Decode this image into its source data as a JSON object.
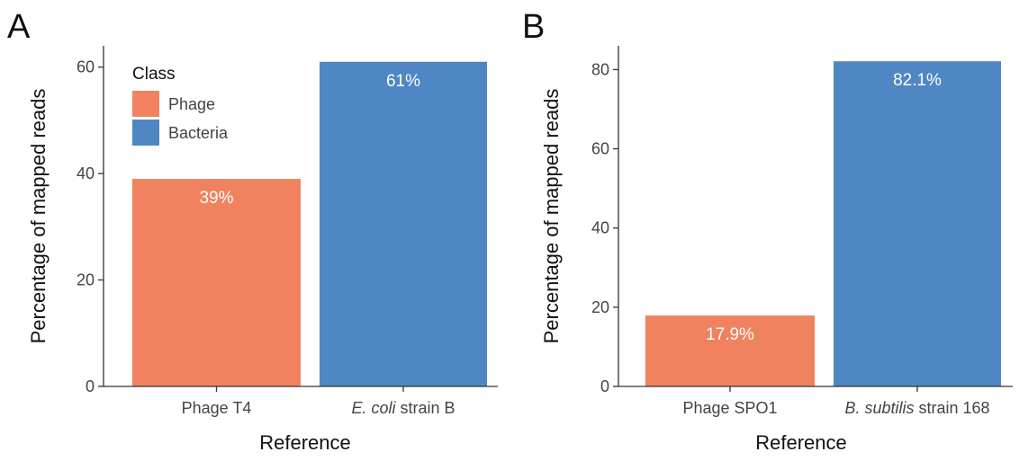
{
  "colors": {
    "phage": "#F0825F",
    "bacteria": "#4F86C4",
    "axis": "#333333"
  },
  "legend": {
    "title": "Class",
    "items": [
      {
        "label": "Phage",
        "color": "#F0825F"
      },
      {
        "label": "Bacteria",
        "color": "#4F86C4"
      }
    ]
  },
  "chart_data": [
    {
      "type": "bar",
      "panel": "A",
      "categories": [
        {
          "italic": "",
          "rest": "Phage T4"
        },
        {
          "italic": "E. coli",
          "rest": " strain B"
        }
      ],
      "values": [
        39,
        61
      ],
      "labels": [
        "39%",
        "61%"
      ],
      "classes": [
        "Phage",
        "Bacteria"
      ],
      "ylabel": "Percentage of mapped reads",
      "xlabel": "Reference",
      "ylim": [
        0,
        64
      ],
      "yticks": [
        0,
        20,
        40,
        60
      ],
      "grid": false,
      "legend_position": "top-left"
    },
    {
      "type": "bar",
      "panel": "B",
      "categories": [
        {
          "italic": "",
          "rest": "Phage SPO1"
        },
        {
          "italic": "B. subtilis",
          "rest": " strain 168"
        }
      ],
      "values": [
        17.9,
        82.1
      ],
      "labels": [
        "17.9%",
        "82.1%"
      ],
      "classes": [
        "Phage",
        "Bacteria"
      ],
      "ylabel": "Percentage of mapped reads",
      "xlabel": "Reference",
      "ylim": [
        0,
        86
      ],
      "yticks": [
        0,
        20,
        40,
        60,
        80
      ],
      "grid": false,
      "legend_position": "none"
    }
  ]
}
